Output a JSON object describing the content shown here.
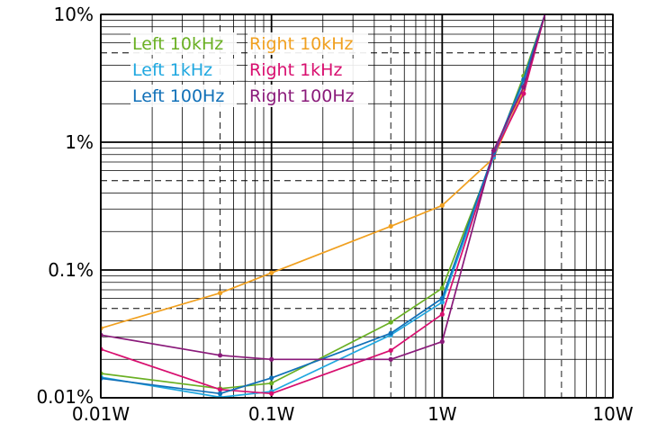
{
  "chart_data": {
    "type": "line",
    "x_scale": "log",
    "y_scale": "log",
    "xlim": [
      0.01,
      10
    ],
    "ylim": [
      0.01,
      10
    ],
    "x_ticks": [
      {
        "value": 0.01,
        "label": "0.01W"
      },
      {
        "value": 0.1,
        "label": "0.1W"
      },
      {
        "value": 1,
        "label": "1W"
      },
      {
        "value": 10,
        "label": "10W"
      }
    ],
    "y_ticks": [
      {
        "value": 0.01,
        "label": "0.01%"
      },
      {
        "value": 0.1,
        "label": "0.1%"
      },
      {
        "value": 1,
        "label": "1%"
      },
      {
        "value": 10,
        "label": "10%"
      }
    ],
    "grid": true,
    "legend_position": "top-left",
    "series": [
      {
        "name": "Left 10kHz",
        "color": "#6ab023",
        "x": [
          0.01,
          0.05,
          0.1,
          0.5,
          1,
          2,
          3,
          4
        ],
        "y": [
          0.0155,
          0.0118,
          0.013,
          0.039,
          0.072,
          0.78,
          3.3,
          10
        ]
      },
      {
        "name": "Right 10kHz",
        "color": "#f0a020",
        "x": [
          0.01,
          0.05,
          0.1,
          0.5,
          1,
          2,
          3,
          4
        ],
        "y": [
          0.035,
          0.066,
          0.095,
          0.22,
          0.32,
          0.75,
          2.6,
          10
        ]
      },
      {
        "name": "Left 1kHz",
        "color": "#20a8e0",
        "x": [
          0.01,
          0.05,
          0.1,
          0.5,
          1,
          2,
          3,
          4
        ],
        "y": [
          0.0145,
          0.0101,
          0.0112,
          0.031,
          0.056,
          0.76,
          3.0,
          10
        ]
      },
      {
        "name": "Right 1kHz",
        "color": "#d80f6f",
        "x": [
          0.01,
          0.05,
          0.1,
          0.5,
          1,
          2,
          3,
          4
        ],
        "y": [
          0.024,
          0.0116,
          0.0108,
          0.0235,
          0.045,
          0.8,
          2.4,
          10
        ]
      },
      {
        "name": "Left 100Hz",
        "color": "#1070b8",
        "x": [
          0.01,
          0.05,
          0.1,
          0.5,
          1,
          2,
          3,
          4
        ],
        "y": [
          0.0142,
          0.0108,
          0.0143,
          0.032,
          0.06,
          0.82,
          3.1,
          10
        ]
      },
      {
        "name": "Right 100Hz",
        "color": "#8a1a7a",
        "x": [
          0.01,
          0.05,
          0.1,
          0.5,
          1,
          2,
          3,
          4
        ],
        "y": [
          0.031,
          0.0215,
          0.02,
          0.02,
          0.0275,
          0.86,
          2.7,
          10
        ]
      }
    ]
  }
}
